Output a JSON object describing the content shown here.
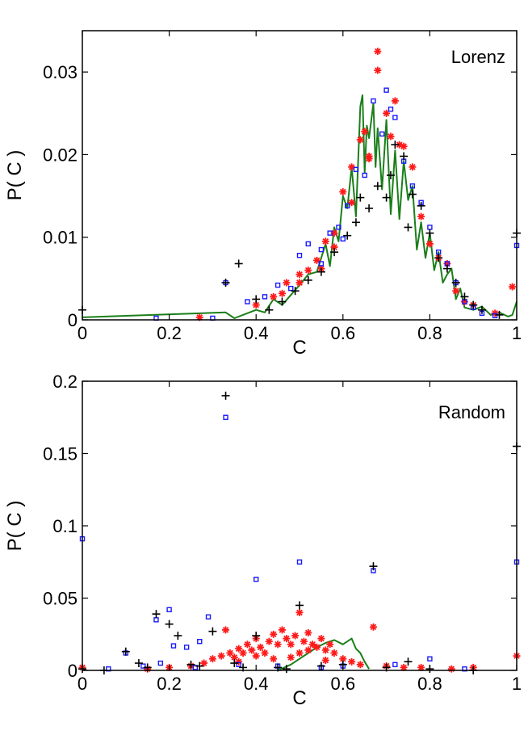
{
  "colors": {
    "line": "#1a7f1a",
    "star": "#ff1a1a",
    "square": "#1a1aff",
    "plus": "#000000",
    "axis": "#000000",
    "background": "#ffffff"
  },
  "chart_data": [
    {
      "type": "scatter",
      "title": "Lorenz",
      "xlabel": "C",
      "ylabel": "P( C )",
      "xlim": [
        0,
        1
      ],
      "ylim": [
        0,
        0.035
      ],
      "xticks": [
        0,
        0.2,
        0.4,
        0.6,
        0.8,
        1
      ],
      "xtick_labels": [
        "0",
        "0.2",
        "0.4",
        "0.6",
        "0.8",
        "1"
      ],
      "yticks": [
        0,
        0.01,
        0.02,
        0.03
      ],
      "ytick_labels": [
        "0",
        "0.01",
        "0.02",
        "0.03"
      ],
      "grid": false,
      "legend": "none",
      "series": [
        {
          "name": "line",
          "marker": "line",
          "x": [
            0,
            0.33,
            0.35,
            0.38,
            0.4,
            0.42,
            0.44,
            0.46,
            0.48,
            0.5,
            0.52,
            0.54,
            0.56,
            0.57,
            0.58,
            0.59,
            0.6,
            0.61,
            0.62,
            0.63,
            0.64,
            0.645,
            0.65,
            0.655,
            0.66,
            0.67,
            0.675,
            0.68,
            0.69,
            0.7,
            0.71,
            0.72,
            0.73,
            0.74,
            0.75,
            0.76,
            0.77,
            0.78,
            0.79,
            0.8,
            0.81,
            0.82,
            0.83,
            0.84,
            0.85,
            0.86,
            0.87,
            0.88,
            0.9,
            0.92,
            0.94,
            0.96,
            0.98,
            0.99,
            1
          ],
          "y": [
            0.0003,
            0.0009,
            0.0002,
            0.0008,
            0.0012,
            0.0009,
            0.0025,
            0.0018,
            0.003,
            0.0042,
            0.0055,
            0.0058,
            0.0092,
            0.0065,
            0.0112,
            0.0095,
            0.015,
            0.0135,
            0.0185,
            0.0125,
            0.0258,
            0.0272,
            0.0178,
            0.0235,
            0.022,
            0.0262,
            0.0185,
            0.0232,
            0.0158,
            0.0242,
            0.0128,
            0.0205,
            0.0122,
            0.0192,
            0.0145,
            0.0162,
            0.0085,
            0.0118,
            0.0075,
            0.0105,
            0.006,
            0.0082,
            0.0045,
            0.0055,
            0.0062,
            0.0025,
            0.0038,
            0.0015,
            0.0012,
            0.0016,
            0.0006,
            0.0009,
            0.0004,
            0.0006,
            0.0022
          ]
        },
        {
          "name": "stars",
          "marker": "star",
          "x": [
            0.27,
            0.4,
            0.44,
            0.47,
            0.5,
            0.52,
            0.54,
            0.56,
            0.58,
            0.6,
            0.62,
            0.64,
            0.65,
            0.66,
            0.68,
            0.7,
            0.72,
            0.74,
            0.76,
            0.78,
            0.8,
            0.82,
            0.84,
            0.86,
            0.88,
            0.9,
            0.95,
            0.99,
            0.68,
            0.66,
            0.71,
            0.73,
            0.62,
            0.58,
            0.55,
            0.5,
            0.46
          ],
          "y": [
            0.0003,
            0.0018,
            0.0028,
            0.0045,
            0.0055,
            0.006,
            0.0072,
            0.0095,
            0.0105,
            0.0155,
            0.0185,
            0.0218,
            0.0228,
            0.0198,
            0.0325,
            0.025,
            0.0265,
            0.021,
            0.0185,
            0.0125,
            0.0092,
            0.0075,
            0.0068,
            0.0035,
            0.0022,
            0.0018,
            0.0008,
            0.004,
            0.0302,
            0.0195,
            0.0222,
            0.0212,
            0.0142,
            0.0088,
            0.0062,
            0.0045,
            0.0032
          ]
        },
        {
          "name": "squares",
          "marker": "square",
          "x": [
            0.17,
            0.3,
            0.33,
            0.38,
            0.42,
            0.45,
            0.48,
            0.5,
            0.52,
            0.55,
            0.57,
            0.59,
            0.61,
            0.63,
            0.65,
            0.67,
            0.69,
            0.7,
            0.71,
            0.72,
            0.74,
            0.76,
            0.78,
            0.8,
            0.82,
            0.84,
            0.86,
            0.88,
            0.9,
            0.92,
            0.95,
            1.0,
            0.55,
            0.6
          ],
          "y": [
            0.0002,
            0.0002,
            0.0045,
            0.0022,
            0.0028,
            0.0042,
            0.0038,
            0.0078,
            0.0092,
            0.0085,
            0.0105,
            0.0112,
            0.0138,
            0.0182,
            0.0175,
            0.0265,
            0.0225,
            0.0278,
            0.0255,
            0.0245,
            0.0192,
            0.0162,
            0.0142,
            0.0112,
            0.0082,
            0.0068,
            0.0045,
            0.0022,
            0.0015,
            0.0008,
            0.0005,
            0.009,
            0.0068,
            0.0098
          ]
        },
        {
          "name": "plus",
          "marker": "plus",
          "x": [
            0,
            0.33,
            0.36,
            0.4,
            0.43,
            0.46,
            0.49,
            0.52,
            0.55,
            0.58,
            0.61,
            0.63,
            0.66,
            0.68,
            0.7,
            0.72,
            0.74,
            0.76,
            0.78,
            0.8,
            0.82,
            0.84,
            0.86,
            0.88,
            0.9,
            0.92,
            0.96,
            1.0,
            0.64,
            0.71,
            0.75
          ],
          "y": [
            0.0012,
            0.0045,
            0.0068,
            0.0025,
            0.0012,
            0.0022,
            0.0035,
            0.0048,
            0.0058,
            0.0082,
            0.0102,
            0.0118,
            0.0135,
            0.0162,
            0.0148,
            0.0212,
            0.0198,
            0.0152,
            0.0138,
            0.0105,
            0.0075,
            0.0062,
            0.0045,
            0.0028,
            0.0018,
            0.0012,
            0.0006,
            0.0105,
            0.0148,
            0.0175,
            0.0112
          ]
        }
      ]
    },
    {
      "type": "scatter",
      "title": "Random",
      "xlabel": "C",
      "ylabel": "P( C )",
      "xlim": [
        0,
        1
      ],
      "ylim": [
        0,
        0.2
      ],
      "xticks": [
        0,
        0.2,
        0.4,
        0.6,
        0.8,
        1
      ],
      "xtick_labels": [
        "0",
        "0.2",
        "0.4",
        "0.6",
        "0.8",
        "1"
      ],
      "yticks": [
        0,
        0.05,
        0.1,
        0.15,
        0.2
      ],
      "ytick_labels": [
        "0",
        "0.05",
        "0.1",
        "0.15",
        "0.2"
      ],
      "grid": false,
      "legend": "none",
      "series": [
        {
          "name": "line",
          "marker": "line",
          "x": [
            0.45,
            0.48,
            0.5,
            0.52,
            0.54,
            0.56,
            0.58,
            0.6,
            0.62,
            0.63,
            0.64,
            0.65,
            0.66
          ],
          "y": [
            0.0,
            0.004,
            0.008,
            0.012,
            0.016,
            0.019,
            0.021,
            0.018,
            0.022,
            0.015,
            0.012,
            0.006,
            0.001
          ]
        },
        {
          "name": "stars",
          "marker": "star",
          "x": [
            0.0,
            0.15,
            0.2,
            0.25,
            0.28,
            0.3,
            0.32,
            0.33,
            0.34,
            0.35,
            0.36,
            0.37,
            0.38,
            0.39,
            0.4,
            0.41,
            0.42,
            0.43,
            0.44,
            0.45,
            0.46,
            0.47,
            0.48,
            0.49,
            0.5,
            0.51,
            0.52,
            0.53,
            0.54,
            0.55,
            0.56,
            0.57,
            0.58,
            0.6,
            0.62,
            0.64,
            0.67,
            0.7,
            0.74,
            0.78,
            0.85,
            0.9,
            1.0,
            0.36,
            0.44,
            0.5,
            0.52,
            0.4,
            0.48,
            0.56
          ],
          "y": [
            0.002,
            0.001,
            0.002,
            0.003,
            0.005,
            0.008,
            0.01,
            0.028,
            0.012,
            0.009,
            0.015,
            0.012,
            0.018,
            0.014,
            0.022,
            0.016,
            0.012,
            0.02,
            0.025,
            0.018,
            0.028,
            0.022,
            0.018,
            0.024,
            0.04,
            0.02,
            0.026,
            0.018,
            0.016,
            0.022,
            0.014,
            0.018,
            0.012,
            0.008,
            0.006,
            0.004,
            0.03,
            0.003,
            0.002,
            0.002,
            0.001,
            0.002,
            0.01,
            0.006,
            0.008,
            0.012,
            0.014,
            0.01,
            0.009,
            0.007
          ]
        },
        {
          "name": "squares",
          "marker": "square",
          "x": [
            0.0,
            0.06,
            0.1,
            0.14,
            0.17,
            0.2,
            0.21,
            0.24,
            0.27,
            0.29,
            0.33,
            0.4,
            0.5,
            0.55,
            0.6,
            0.67,
            0.72,
            0.8,
            0.88,
            1.0,
            0.18,
            0.26,
            0.36,
            0.45
          ],
          "y": [
            0.091,
            0.001,
            0.012,
            0.003,
            0.035,
            0.042,
            0.017,
            0.016,
            0.02,
            0.037,
            0.175,
            0.063,
            0.075,
            0.002,
            0.003,
            0.069,
            0.004,
            0.008,
            0.001,
            0.075,
            0.005,
            0.002,
            0.004,
            0.003
          ]
        },
        {
          "name": "plus",
          "marker": "plus",
          "x": [
            0.0,
            0.05,
            0.1,
            0.13,
            0.15,
            0.17,
            0.2,
            0.22,
            0.25,
            0.3,
            0.33,
            0.35,
            0.4,
            0.45,
            0.5,
            0.55,
            0.6,
            0.67,
            0.7,
            0.75,
            0.8,
            0.9,
            1.0,
            0.27,
            0.37,
            0.47
          ],
          "y": [
            0.001,
            0.0,
            0.013,
            0.005,
            0.002,
            0.039,
            0.032,
            0.024,
            0.004,
            0.027,
            0.19,
            0.005,
            0.024,
            0.002,
            0.045,
            0.003,
            0.004,
            0.072,
            0.002,
            0.006,
            0.001,
            0.0,
            0.155,
            0.003,
            0.002,
            0.001
          ]
        }
      ]
    }
  ]
}
